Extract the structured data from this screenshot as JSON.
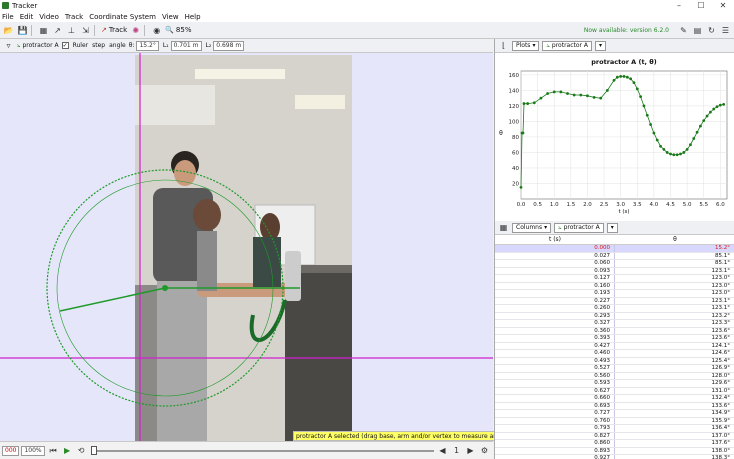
{
  "window": {
    "title": "Tracker",
    "controls": [
      "–",
      "☐",
      "✕"
    ]
  },
  "menu": [
    "File",
    "Edit",
    "Video",
    "Track",
    "Coordinate System",
    "View",
    "Help"
  ],
  "toolbar": {
    "track_label": "Track",
    "zoom": "85%",
    "new_version": "Now available: version 6.2.0"
  },
  "track_bar": {
    "track_name": "protractor A",
    "ruler_label": "Ruler",
    "step_label": "step",
    "angle_label": "angle",
    "theta_label": "θ:",
    "angle_value": "15.2°",
    "l1_label": "L₁",
    "l1_value": "0.701 m",
    "l2_label": "L₂",
    "l2_value": "0.698 m"
  },
  "playback": {
    "frame": "000",
    "rate": "100%"
  },
  "status_message": "protractor A selected (drag base, arm and/or vertex to measure angles)",
  "plot_toolbar": {
    "plots_label": "Plots",
    "track_name": "protractor A"
  },
  "table_toolbar": {
    "columns_label": "Columns",
    "track_name": "protractor A"
  },
  "table": {
    "headers": [
      "t (s)",
      "θ"
    ],
    "rows": [
      [
        "0.000",
        "15.2°"
      ],
      [
        "0.027",
        "85.1°"
      ],
      [
        "0.060",
        "85.1°"
      ],
      [
        "0.093",
        "123.1°"
      ],
      [
        "0.127",
        "123.0°"
      ],
      [
        "0.160",
        "123.0°"
      ],
      [
        "0.193",
        "123.0°"
      ],
      [
        "0.227",
        "123.1°"
      ],
      [
        "0.260",
        "123.1°"
      ],
      [
        "0.293",
        "123.2°"
      ],
      [
        "0.327",
        "123.3°"
      ],
      [
        "0.360",
        "123.6°"
      ],
      [
        "0.393",
        "123.6°"
      ],
      [
        "0.427",
        "124.1°"
      ],
      [
        "0.460",
        "124.6°"
      ],
      [
        "0.493",
        "125.4°"
      ],
      [
        "0.527",
        "126.9°"
      ],
      [
        "0.560",
        "128.0°"
      ],
      [
        "0.593",
        "129.6°"
      ],
      [
        "0.627",
        "131.0°"
      ],
      [
        "0.660",
        "132.4°"
      ],
      [
        "0.693",
        "133.6°"
      ],
      [
        "0.727",
        "134.9°"
      ],
      [
        "0.760",
        "135.9°"
      ],
      [
        "0.793",
        "136.4°"
      ],
      [
        "0.827",
        "137.0°"
      ],
      [
        "0.860",
        "137.6°"
      ],
      [
        "0.893",
        "138.0°"
      ],
      [
        "0.927",
        "138.3°"
      ]
    ]
  },
  "chart_data": {
    "type": "scatter",
    "title": "protractor A (t, θ)",
    "xlabel": "t (s)",
    "ylabel": "θ",
    "xlim": [
      0,
      6.2
    ],
    "ylim": [
      0,
      165
    ],
    "xticks": [
      "0.0",
      "0.5",
      "1.0",
      "1.5",
      "2.0",
      "2.5",
      "3.0",
      "3.5",
      "4.0",
      "4.5",
      "5.0",
      "5.5",
      "6.0"
    ],
    "yticks": [
      "20",
      "40",
      "60",
      "80",
      "100",
      "120",
      "140",
      "160"
    ],
    "color": "#1a7a1a",
    "x": [
      0.0,
      0.03,
      0.06,
      0.09,
      0.2,
      0.4,
      0.6,
      0.8,
      1.0,
      1.2,
      1.4,
      1.6,
      1.8,
      2.0,
      2.2,
      2.4,
      2.6,
      2.8,
      2.9,
      3.0,
      3.1,
      3.2,
      3.3,
      3.4,
      3.5,
      3.6,
      3.7,
      3.8,
      3.9,
      4.0,
      4.1,
      4.2,
      4.3,
      4.4,
      4.5,
      4.6,
      4.7,
      4.8,
      4.9,
      5.0,
      5.1,
      5.2,
      5.3,
      5.4,
      5.5,
      5.6,
      5.7,
      5.8,
      5.9,
      6.0,
      6.1
    ],
    "y": [
      15,
      85,
      85,
      123,
      123,
      124,
      130,
      136,
      138,
      138,
      136,
      134,
      134,
      133,
      131,
      130,
      140,
      153,
      157,
      158,
      158,
      157,
      155,
      150,
      142,
      132,
      120,
      108,
      96,
      85,
      76,
      68,
      64,
      60,
      58,
      57,
      57,
      58,
      60,
      64,
      70,
      78,
      86,
      94,
      101,
      107,
      112,
      116,
      119,
      121,
      122
    ]
  }
}
